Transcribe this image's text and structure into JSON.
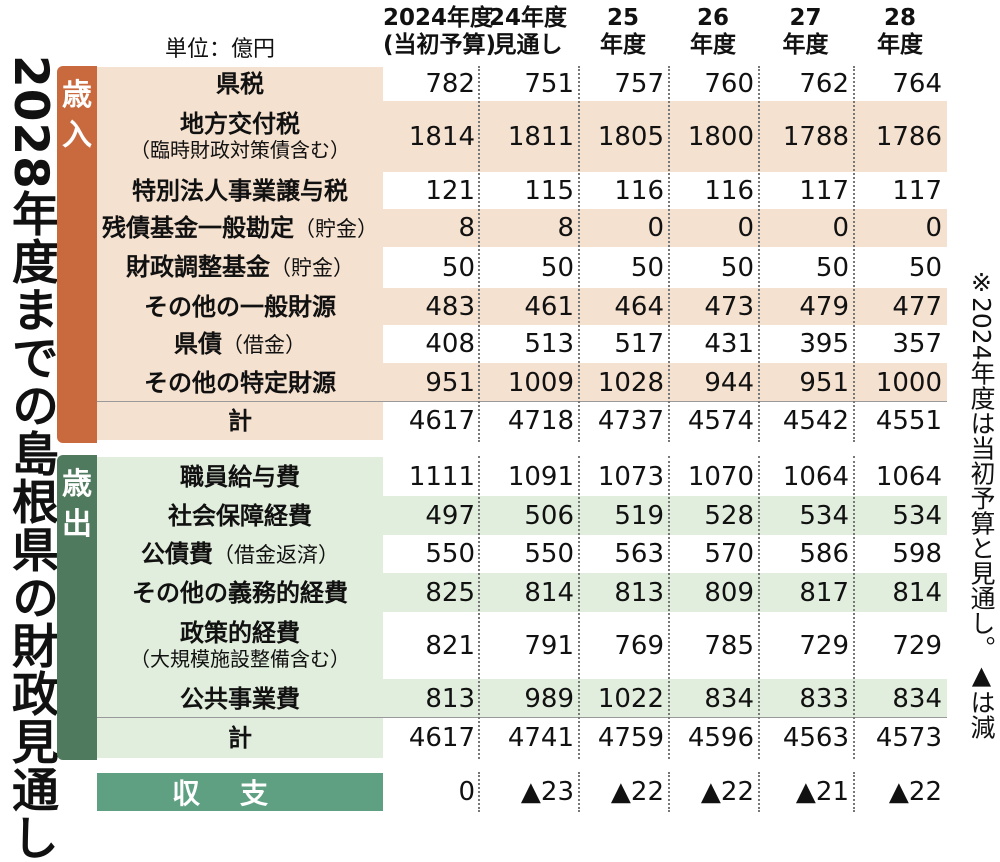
{
  "title": "2028年度までの島根県の財政見通し",
  "note": "※2024年度は当初予算と見通し。▲は減",
  "unit": "単位：億円",
  "columns": [
    {
      "line1": "2024年度",
      "line2": "(当初予算)"
    },
    {
      "line1": "24年度",
      "line2": "見通し"
    },
    {
      "line1": "25",
      "line2": "年度"
    },
    {
      "line1": "26",
      "line2": "年度"
    },
    {
      "line1": "27",
      "line2": "年度"
    },
    {
      "line1": "28",
      "line2": "年度"
    }
  ],
  "revenue": {
    "section_label": "歳入",
    "rows": [
      {
        "label": "県税",
        "note": "",
        "sub": "",
        "values": [
          "782",
          "751",
          "757",
          "760",
          "762",
          "764"
        ]
      },
      {
        "label": "地方交付税",
        "note": "",
        "sub": "（臨時財政対策債含む）",
        "values": [
          "1814",
          "1811",
          "1805",
          "1800",
          "1788",
          "1786"
        ]
      },
      {
        "label": "特別法人事業譲与税",
        "note": "",
        "sub": "",
        "values": [
          "121",
          "115",
          "116",
          "116",
          "117",
          "117"
        ]
      },
      {
        "label": "残債基金一般勘定",
        "note": "（貯金）",
        "sub": "",
        "values": [
          "8",
          "8",
          "0",
          "0",
          "0",
          "0"
        ]
      },
      {
        "label": "財政調整基金",
        "note": "（貯金）",
        "sub": "",
        "values": [
          "50",
          "50",
          "50",
          "50",
          "50",
          "50"
        ]
      },
      {
        "label": "その他の一般財源",
        "note": "",
        "sub": "",
        "values": [
          "483",
          "461",
          "464",
          "473",
          "479",
          "477"
        ]
      },
      {
        "label": "県債",
        "note": "（借金）",
        "sub": "",
        "values": [
          "408",
          "513",
          "517",
          "431",
          "395",
          "357"
        ]
      },
      {
        "label": "その他の特定財源",
        "note": "",
        "sub": "",
        "values": [
          "951",
          "1009",
          "1028",
          "944",
          "951",
          "1000"
        ]
      },
      {
        "label": "計",
        "note": "",
        "sub": "",
        "values": [
          "4617",
          "4718",
          "4737",
          "4574",
          "4542",
          "4551"
        ]
      }
    ]
  },
  "expenditure": {
    "section_label": "歳出",
    "rows": [
      {
        "label": "職員給与費",
        "note": "",
        "sub": "",
        "values": [
          "1111",
          "1091",
          "1073",
          "1070",
          "1064",
          "1064"
        ]
      },
      {
        "label": "社会保障経費",
        "note": "",
        "sub": "",
        "values": [
          "497",
          "506",
          "519",
          "528",
          "534",
          "534"
        ]
      },
      {
        "label": "公債費",
        "note": "（借金返済）",
        "sub": "",
        "values": [
          "550",
          "550",
          "563",
          "570",
          "586",
          "598"
        ]
      },
      {
        "label": "その他の義務的経費",
        "note": "",
        "sub": "",
        "values": [
          "825",
          "814",
          "813",
          "809",
          "817",
          "814"
        ]
      },
      {
        "label": "政策的経費",
        "note": "",
        "sub": "（大規模施設整備含む）",
        "values": [
          "821",
          "791",
          "769",
          "785",
          "729",
          "729"
        ]
      },
      {
        "label": "公共事業費",
        "note": "",
        "sub": "",
        "values": [
          "813",
          "989",
          "1022",
          "834",
          "833",
          "834"
        ]
      },
      {
        "label": "計",
        "note": "",
        "sub": "",
        "values": [
          "4617",
          "4741",
          "4759",
          "4596",
          "4563",
          "4573"
        ]
      }
    ]
  },
  "balance": {
    "label": "収支",
    "values": [
      "0",
      "▲23",
      "▲22",
      "▲22",
      "▲21",
      "▲22"
    ]
  },
  "colors": {
    "revenue_accent": "#c86a3e",
    "revenue_fill": "#f5e1cf",
    "expenditure_accent": "#4f7a5e",
    "expenditure_fill": "#e2eedd",
    "balance_fill": "#5fa083"
  }
}
